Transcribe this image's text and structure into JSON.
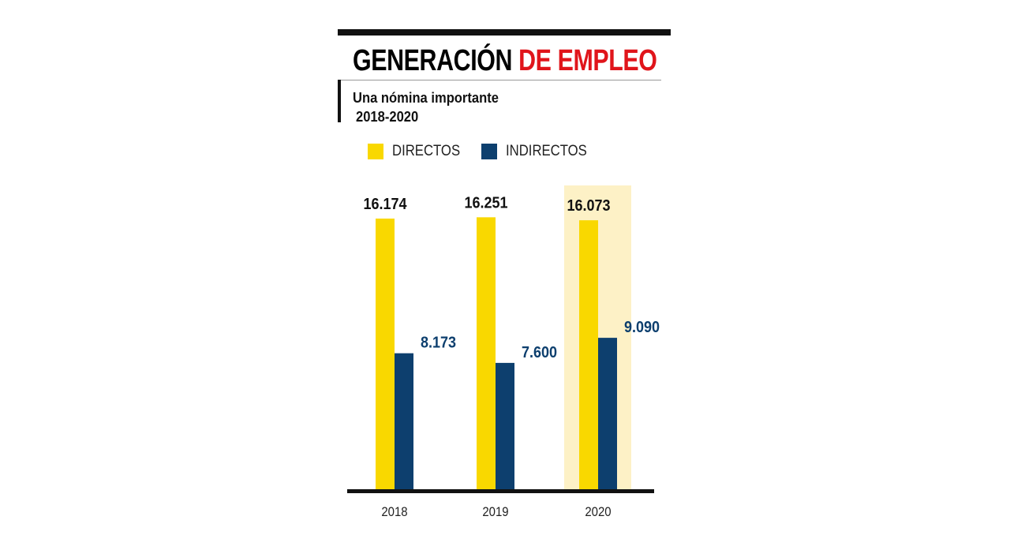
{
  "header": {
    "title_part1": "GENERACIÓN",
    "title_part2": "DE EMPLEO",
    "subtitle": "Una nómina importante",
    "period": "2018-2020"
  },
  "colors": {
    "directos": "#f9d800",
    "indirectos": "#0d3f6e",
    "highlight": "#fdf1c6",
    "title_accent": "#e0151b"
  },
  "chart_data": {
    "type": "bar",
    "categories": [
      "2018",
      "2019",
      "2020"
    ],
    "series": [
      {
        "name": "DIRECTOS",
        "values": [
          16174,
          16251,
          16073
        ],
        "labels": [
          "16.174",
          "16.251",
          "16.073"
        ]
      },
      {
        "name": "INDIRECTOS",
        "values": [
          8173,
          7600,
          9090
        ],
        "labels": [
          "8.173",
          "7.600",
          "9.090"
        ]
      }
    ],
    "highlighted_category": "2020",
    "legend": "top-left",
    "grid": false,
    "y_axis_visible": false
  }
}
